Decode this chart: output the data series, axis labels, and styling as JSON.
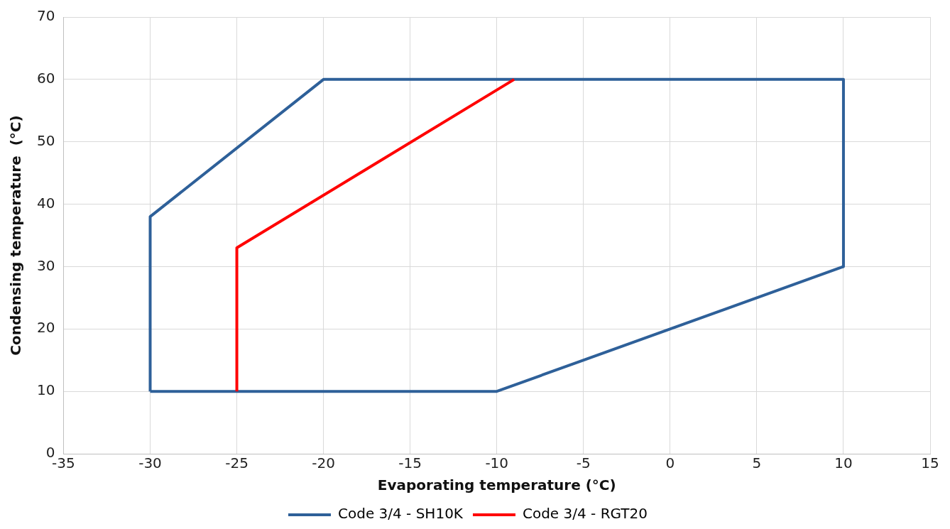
{
  "chart_data": {
    "type": "line",
    "xlabel": "Evaporating temperature (°C)",
    "ylabel": "Condensing temperature  (°C)",
    "series": [
      {
        "name": "Code 3/4 - SH10K",
        "color": "#2e6099",
        "x": [
          -30,
          -30,
          -20,
          10,
          10
        ],
        "values": [
          10,
          38,
          60,
          60,
          30
        ]
      },
      {
        "color": "#2e6099",
        "x": [
          -30,
          -10,
          10
        ],
        "values": [
          10,
          10,
          30
        ]
      },
      {
        "name": "Code 3/4 - RGT20",
        "color": "#ff0000",
        "x": [
          -25,
          -25,
          -9
        ],
        "values": [
          10,
          33,
          60
        ]
      }
    ],
    "xlim": [
      -35,
      15
    ],
    "xticks": [
      -35,
      -30,
      -25,
      -20,
      -15,
      -10,
      -5,
      0,
      5,
      10,
      15
    ],
    "ylim": [
      0,
      70
    ],
    "yticks": [
      0,
      10,
      20,
      30,
      40,
      50,
      60,
      70
    ],
    "grid": true,
    "legend": "bottom",
    "marker": "none",
    "line_style": "solid"
  }
}
